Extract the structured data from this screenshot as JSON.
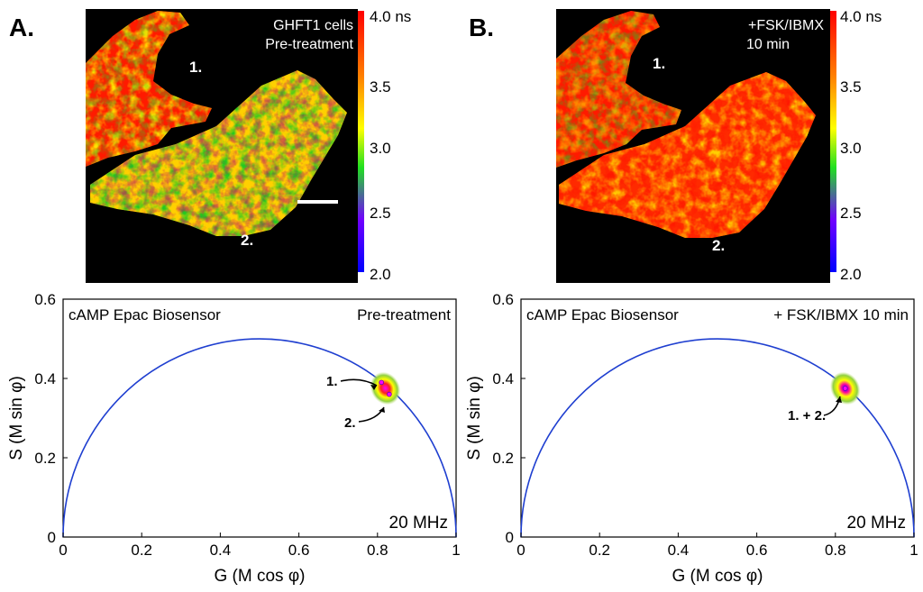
{
  "panels": [
    {
      "letter": "A.",
      "image": {
        "caption_line1": "GHFT1 cells",
        "caption_line2": "Pre-treatment",
        "cell_label_1": "1.",
        "cell_label_2": "2.",
        "scale_bar": true
      },
      "colorbar": {
        "ticks": [
          "4.0 ns",
          "3.5",
          "3.0",
          "2.5",
          "2.0"
        ]
      },
      "phasor": {
        "label_left": "cAMP Epac Biosensor",
        "label_right": "Pre-treatment",
        "frequency": "20 MHz",
        "annotations": [
          "1.",
          "2."
        ]
      }
    },
    {
      "letter": "B.",
      "image": {
        "caption_line1": "+FSK/IBMX",
        "caption_line2": "10 min",
        "cell_label_1": "1.",
        "cell_label_2": "2.",
        "scale_bar": false
      },
      "colorbar": {
        "ticks": [
          "4.0 ns",
          "3.5",
          "3.0",
          "2.5",
          "2.0"
        ]
      },
      "phasor": {
        "label_left": "cAMP Epac Biosensor",
        "label_right": "+ FSK/IBMX 10 min",
        "frequency": "20 MHz",
        "annotations": [
          "1. + 2."
        ]
      }
    }
  ],
  "chart_data": [
    {
      "type": "scatter",
      "title": "",
      "xlabel": "G (M cos φ)",
      "ylabel": "S (M sin φ)",
      "xlim": [
        0,
        1
      ],
      "ylim": [
        0,
        0.6
      ],
      "x_ticks": [
        "0",
        "0.2",
        "0.4",
        "0.6",
        "0.8",
        "1"
      ],
      "y_ticks": [
        "0",
        "0.2",
        "0.4",
        "0.6"
      ],
      "semicircle": {
        "center": [
          0.5,
          0
        ],
        "radius": 0.5,
        "color": "#1f3fd0"
      },
      "clusters": [
        {
          "name": "1.",
          "x": 0.81,
          "y": 0.39
        },
        {
          "name": "2.",
          "x": 0.83,
          "y": 0.36
        }
      ],
      "cloud": {
        "x": 0.82,
        "y": 0.375
      }
    },
    {
      "type": "scatter",
      "title": "",
      "xlabel": "G (M cos φ)",
      "ylabel": "S (M sin φ)",
      "xlim": [
        0,
        1
      ],
      "ylim": [
        0,
        0.6
      ],
      "x_ticks": [
        "0",
        "0.2",
        "0.4",
        "0.6",
        "0.8",
        "1"
      ],
      "y_ticks": [
        "0",
        "0.2",
        "0.4",
        "0.6"
      ],
      "semicircle": {
        "center": [
          0.5,
          0
        ],
        "radius": 0.5,
        "color": "#1f3fd0"
      },
      "clusters": [
        {
          "name": "1. + 2.",
          "x": 0.825,
          "y": 0.375
        }
      ],
      "cloud": {
        "x": 0.825,
        "y": 0.375
      }
    }
  ],
  "colors": {
    "semicircle": "#1f3fd0",
    "image_background": "#000000",
    "colormap": [
      "#ff0000",
      "#ff7a00",
      "#ffff00",
      "#00e000",
      "#7a00ff",
      "#0000ff"
    ]
  }
}
